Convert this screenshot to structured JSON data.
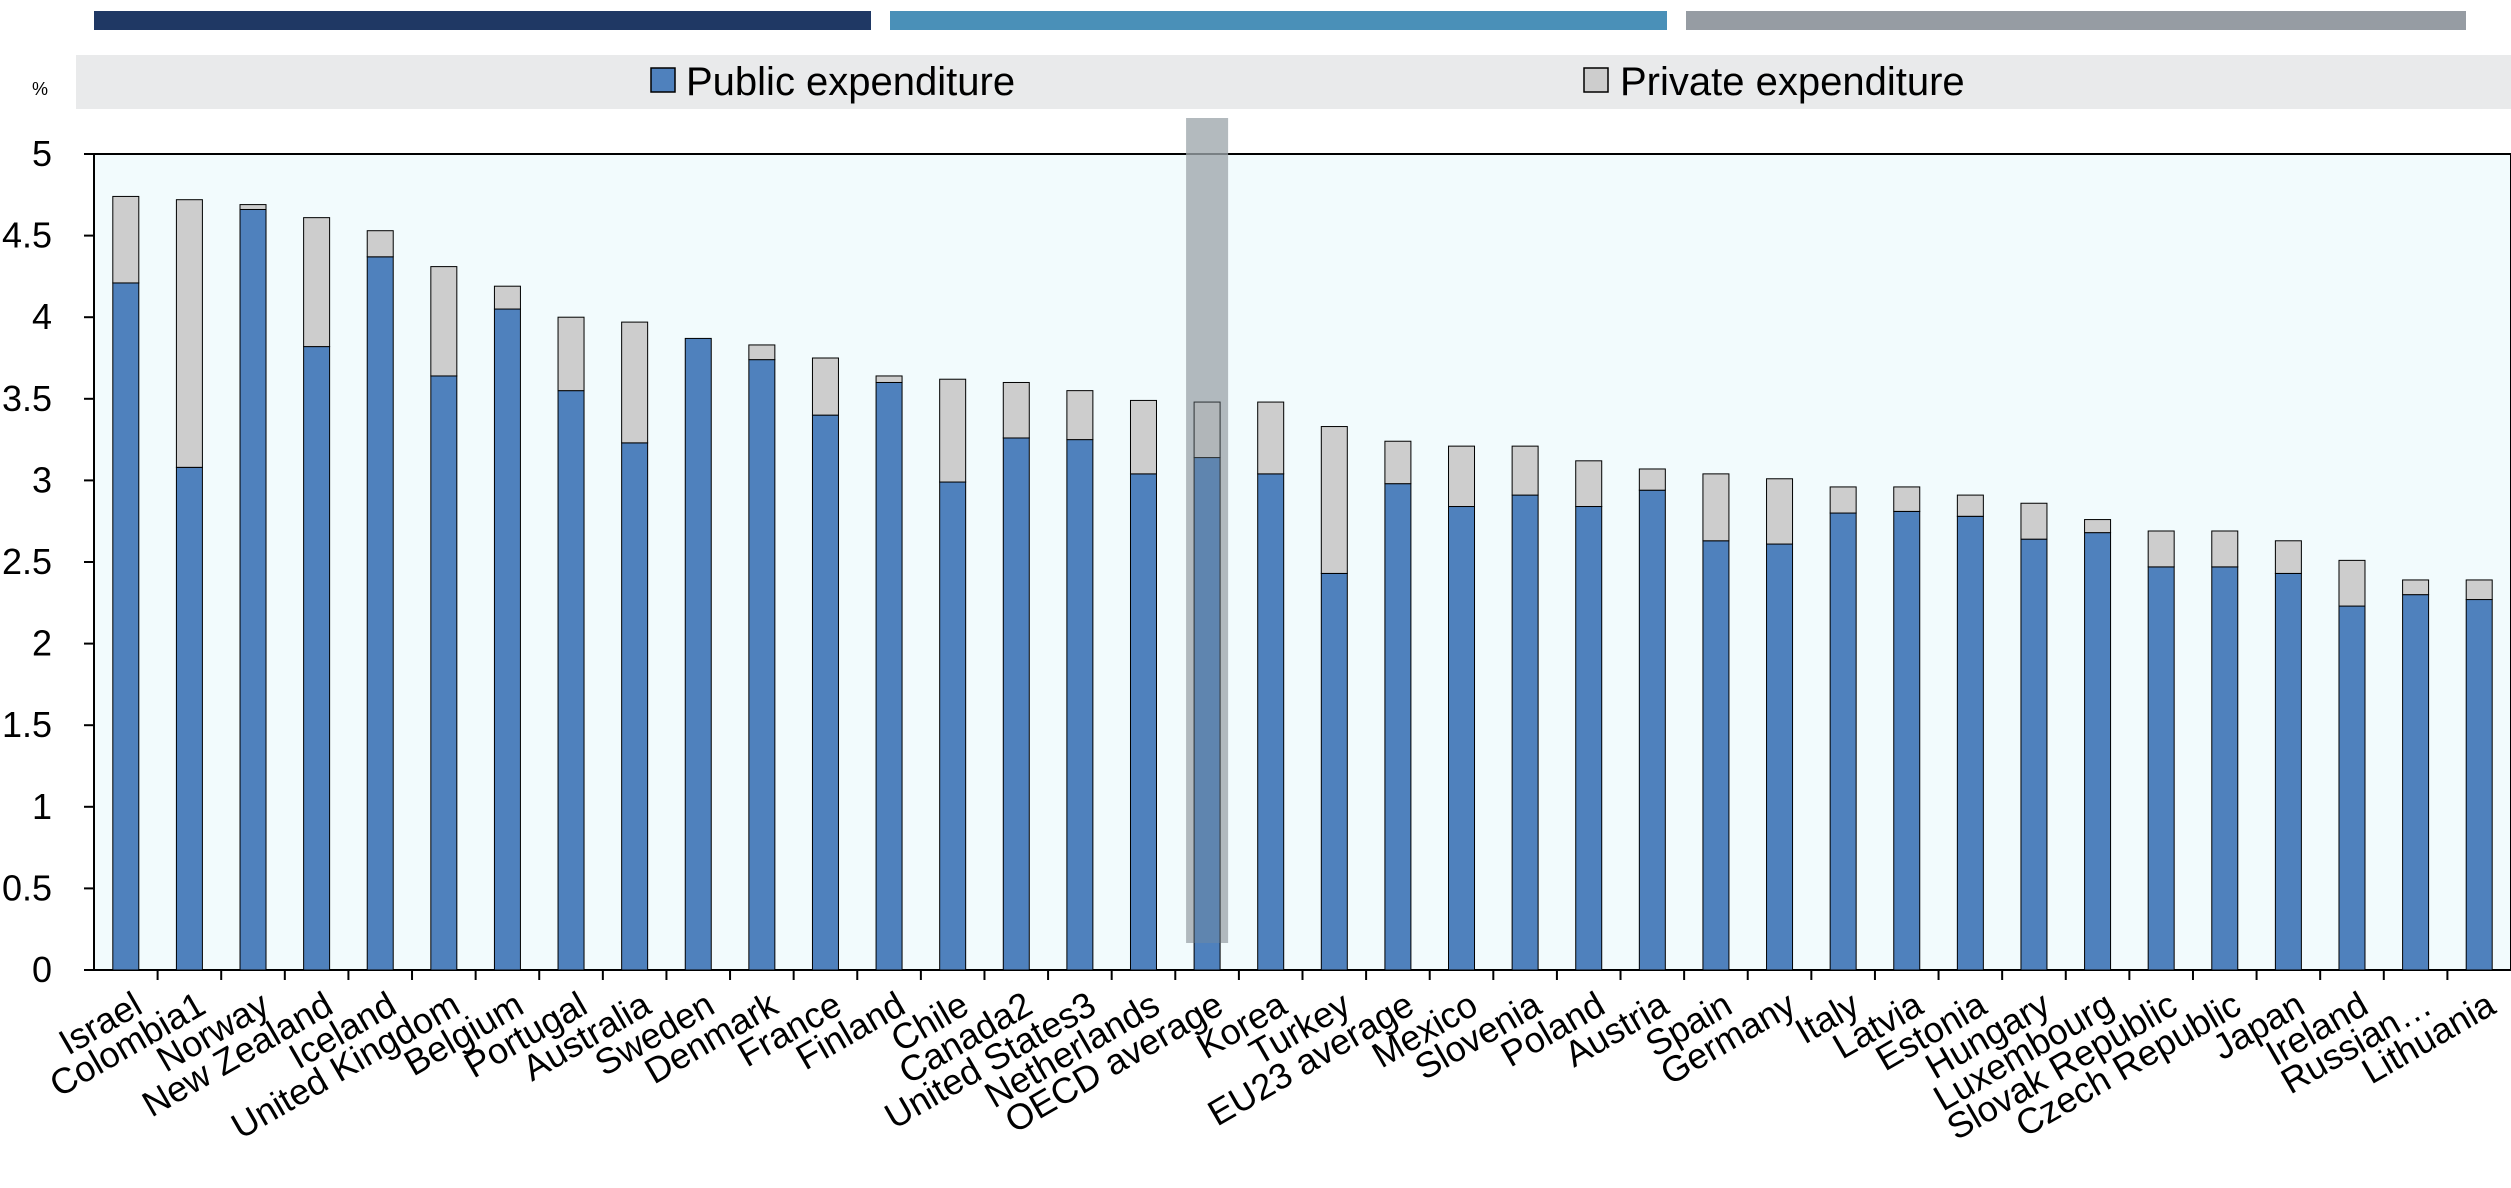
{
  "chart_data": {
    "type": "bar",
    "stacked": true,
    "ylabel": "%",
    "ylim": [
      0,
      5
    ],
    "yticks": [
      "0",
      "0.5",
      "1",
      "1.5",
      "2",
      "2.5",
      "3",
      "3.5",
      "4",
      "4.5",
      "5"
    ],
    "grid": false,
    "legend_placement": "top",
    "highlight_category": "OECD average",
    "categories": [
      "Israel",
      "Colombia1",
      "Norway",
      "New Zealand",
      "Iceland",
      "United Kingdom",
      "Belgium",
      "Portugal",
      "Australia",
      "Sweden",
      "Denmark",
      "France",
      "Finland",
      "Chile",
      "Canada2",
      "United States3",
      "Netherlands",
      "OECD average",
      "Korea",
      "Turkey",
      "EU23 average",
      "Mexico",
      "Slovenia",
      "Poland",
      "Austria",
      "Spain",
      "Germany",
      "Italy",
      "Latvia",
      "Estonia",
      "Hungary",
      "Luxembourg",
      "Slovak Republic",
      "Czech Republic",
      "Japan",
      "Ireland",
      "Russian…",
      "Lithuania"
    ],
    "series": [
      {
        "name": "Public expenditure",
        "color": "#4f81bd",
        "values": [
          4.21,
          3.08,
          4.66,
          3.82,
          4.37,
          3.64,
          4.05,
          3.55,
          3.23,
          3.87,
          3.74,
          3.4,
          3.6,
          2.99,
          3.26,
          3.25,
          3.04,
          3.14,
          3.04,
          2.43,
          2.98,
          2.84,
          2.91,
          2.84,
          2.94,
          2.63,
          2.61,
          2.8,
          2.81,
          2.78,
          2.64,
          2.68,
          2.47,
          2.47,
          2.43,
          2.23,
          2.3,
          2.27
        ]
      },
      {
        "name": "Private expenditure",
        "color": "#cdcdcd",
        "values": [
          0.53,
          1.64,
          0.03,
          0.79,
          0.16,
          0.67,
          0.14,
          0.45,
          0.74,
          0.0,
          0.09,
          0.35,
          0.04,
          0.63,
          0.34,
          0.3,
          0.45,
          0.34,
          0.44,
          0.9,
          0.26,
          0.37,
          0.3,
          0.28,
          0.13,
          0.41,
          0.4,
          0.16,
          0.15,
          0.13,
          0.22,
          0.08,
          0.22,
          0.22,
          0.2,
          0.28,
          0.09,
          0.12
        ]
      }
    ]
  },
  "colors": {
    "top_bar_1": "#1f3864",
    "top_bar_2": "#4a90b8",
    "top_bar_3": "#969ca3",
    "plot_background": "#f2fbfd",
    "legend_background": "#e9eaeb",
    "highlight_band": "#b7bcbf"
  }
}
